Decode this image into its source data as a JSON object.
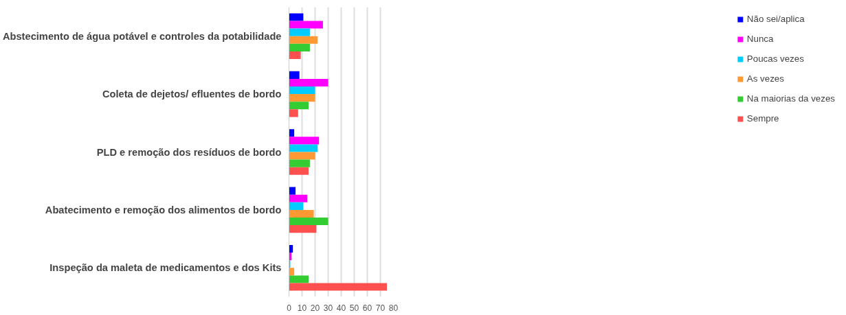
{
  "chart_data": {
    "type": "bar",
    "orientation": "horizontal",
    "categories": [
      "Abstecimento de água potável e controles da potabilidade",
      "Coleta de dejetos/ efluentes de bordo",
      "PLD e remoção dos resíduos de bordo",
      "Abatecimento e remoção dos alimentos de bordo",
      "Inspeção da maleta de medicamentos e dos Kits"
    ],
    "series": [
      {
        "name": "Não sei/aplica",
        "color": "#0000ff",
        "values": [
          11,
          8,
          4,
          5,
          3
        ]
      },
      {
        "name": "Nunca",
        "color": "#ff00ff",
        "values": [
          26,
          30,
          23,
          14,
          2
        ]
      },
      {
        "name": "Poucas vezes",
        "color": "#00ccff",
        "values": [
          16,
          20,
          22,
          11,
          1
        ]
      },
      {
        "name": "As vezes",
        "color": "#ff9933",
        "values": [
          22,
          20,
          20,
          19,
          4
        ]
      },
      {
        "name": "Na maiorias da vezes",
        "color": "#33cc33",
        "values": [
          16,
          15,
          16,
          30,
          15
        ]
      },
      {
        "name": "Sempre",
        "color": "#ff5050",
        "values": [
          9,
          7,
          15,
          21,
          75
        ]
      }
    ],
    "xlim": [
      0,
      80
    ],
    "xticks": [
      0,
      10,
      20,
      30,
      40,
      50,
      60,
      70,
      80
    ],
    "grid": "x",
    "legend": "right"
  }
}
